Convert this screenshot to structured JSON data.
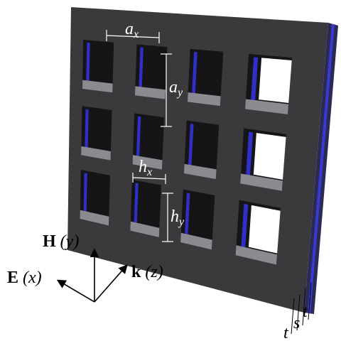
{
  "dimensions": {
    "ax": {
      "main": "a",
      "sub": "x"
    },
    "ay": {
      "main": "a",
      "sub": "y"
    },
    "hx": {
      "main": "h",
      "sub": "x"
    },
    "hy": {
      "main": "h",
      "sub": "y"
    }
  },
  "axes": [
    {
      "symbol": "H",
      "axis": "(y)"
    },
    {
      "symbol": "E",
      "axis": "(x)"
    },
    {
      "symbol": "k",
      "axis": "(z)"
    }
  ],
  "thickness": [
    "t",
    "s",
    "t"
  ]
}
